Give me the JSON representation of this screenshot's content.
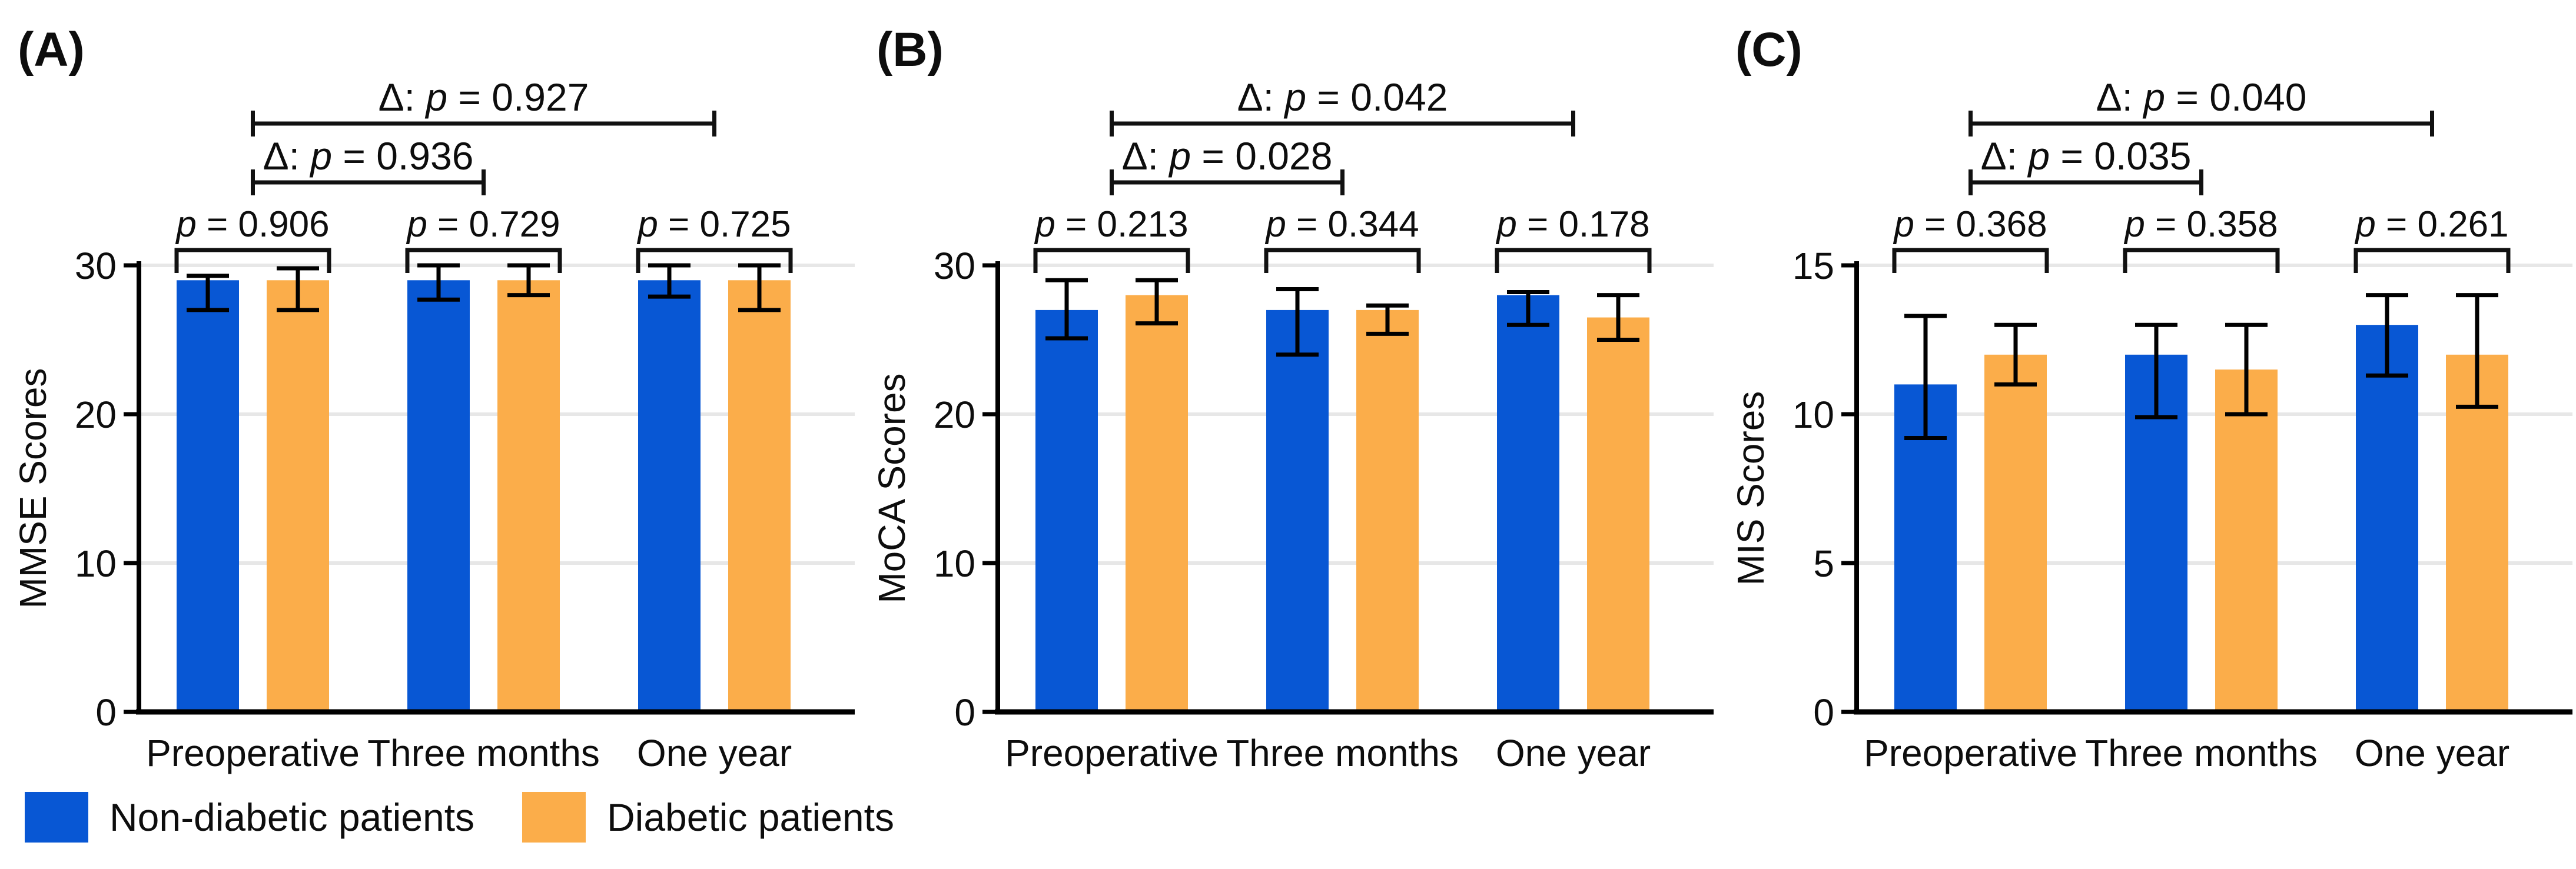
{
  "figure": {
    "legend": [
      {
        "label": "Non-diabetic patients",
        "color": "#0857D4"
      },
      {
        "label": "Diabetic patients",
        "color": "#FBAD4A"
      }
    ],
    "colors": {
      "non_diabetic": "#0857D4",
      "diabetic": "#FBAD4A",
      "gridline": "#E7E7E7",
      "axis": "#000000",
      "text": "#0d0d0d"
    }
  },
  "chart_data": [
    {
      "type": "bar",
      "panel_label": "(A)",
      "ylabel": "MMSE Scores",
      "ylim": [
        0,
        30
      ],
      "yticks": [
        0,
        10,
        20,
        30
      ],
      "grid": true,
      "legend_position": "bottom-left-of-figure",
      "categories": [
        "Preoperative",
        "Three months",
        "One year"
      ],
      "series": [
        {
          "name": "Non-diabetic patients",
          "color": "#0857D4",
          "values": [
            29,
            29,
            29
          ],
          "err_up": [
            0.3,
            1.0,
            1.0
          ],
          "err_down": [
            2.0,
            1.3,
            1.1
          ]
        },
        {
          "name": "Diabetic patients",
          "color": "#FBAD4A",
          "values": [
            29,
            29,
            29
          ],
          "err_up": [
            0.8,
            1.0,
            1.0
          ],
          "err_down": [
            2.0,
            1.0,
            2.0
          ]
        }
      ],
      "pair_p_labels": [
        "p = 0.906",
        "p = 0.729",
        "p = 0.725"
      ],
      "delta_comparisons": [
        {
          "from": 0,
          "to": 1,
          "label": "Δ: p = 0.936"
        },
        {
          "from": 0,
          "to": 2,
          "label": "Δ: p = 0.927"
        }
      ]
    },
    {
      "type": "bar",
      "panel_label": "(B)",
      "ylabel": "MoCA Scores",
      "ylim": [
        0,
        30
      ],
      "yticks": [
        0,
        10,
        20,
        30
      ],
      "grid": true,
      "legend_position": "bottom-left-of-figure",
      "categories": [
        "Preoperative",
        "Three months",
        "One year"
      ],
      "series": [
        {
          "name": "Non-diabetic patients",
          "color": "#0857D4",
          "values": [
            27,
            27,
            28
          ],
          "err_up": [
            2.0,
            1.4,
            0.2
          ],
          "err_down": [
            1.9,
            3.0,
            2.0
          ]
        },
        {
          "name": "Diabetic patients",
          "color": "#FBAD4A",
          "values": [
            28,
            27,
            26.5
          ],
          "err_up": [
            1.0,
            0.3,
            1.5
          ],
          "err_down": [
            1.9,
            1.6,
            1.5
          ]
        }
      ],
      "pair_p_labels": [
        "p = 0.213",
        "p = 0.344",
        "p = 0.178"
      ],
      "delta_comparisons": [
        {
          "from": 0,
          "to": 1,
          "label": "Δ: p = 0.028"
        },
        {
          "from": 0,
          "to": 2,
          "label": "Δ: p = 0.042"
        }
      ]
    },
    {
      "type": "bar",
      "panel_label": "(C)",
      "ylabel": "MIS Scores",
      "ylim": [
        0,
        15
      ],
      "yticks": [
        0,
        5,
        10,
        15
      ],
      "grid": true,
      "legend_position": "bottom-left-of-figure",
      "categories": [
        "Preoperative",
        "Three months",
        "One year"
      ],
      "series": [
        {
          "name": "Non-diabetic patients",
          "color": "#0857D4",
          "values": [
            11,
            12,
            13
          ],
          "err_up": [
            2.3,
            1.0,
            1.0
          ],
          "err_down": [
            1.8,
            2.1,
            1.7
          ]
        },
        {
          "name": "Diabetic patients",
          "color": "#FBAD4A",
          "values": [
            12,
            11.5,
            12
          ],
          "err_up": [
            1.0,
            1.5,
            2.0
          ],
          "err_down": [
            1.0,
            1.5,
            1.75
          ]
        }
      ],
      "pair_p_labels": [
        "p = 0.368",
        "p = 0.358",
        "p = 0.261"
      ],
      "delta_comparisons": [
        {
          "from": 0,
          "to": 1,
          "label": "Δ: p = 0.035"
        },
        {
          "from": 0,
          "to": 2,
          "label": "Δ: p = 0.040"
        }
      ]
    }
  ]
}
